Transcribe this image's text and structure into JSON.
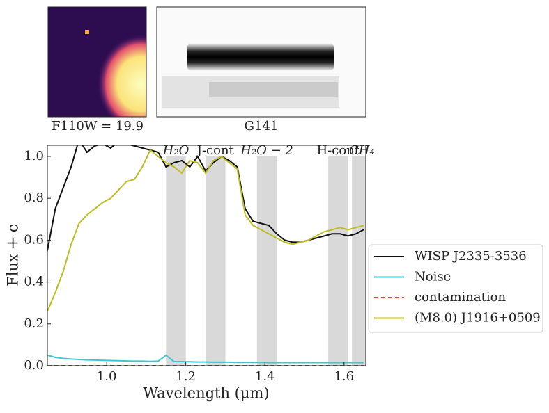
{
  "chart_data": {
    "type": "line",
    "image_labels": [
      "F110W = 19.9",
      "G141"
    ],
    "xlabel": "Wavelength (μm)",
    "ylabel": "Flux + c",
    "xlim": [
      0.85,
      1.655
    ],
    "ylim": [
      0,
      1.053
    ],
    "xticks": [
      {
        "value": 1.0,
        "label": "1.0"
      },
      {
        "value": 1.2,
        "label": "1.2"
      },
      {
        "value": 1.4,
        "label": "1.4"
      },
      {
        "value": 1.6,
        "label": "1.6"
      }
    ],
    "yticks": [
      {
        "value": 0,
        "label": "0.0"
      },
      0.2,
      0.4,
      0.6,
      0.8,
      {
        "value": 1,
        "label": "1.0"
      }
    ],
    "bands": [
      {
        "label": "H₂O",
        "range": [
          1.15,
          1.2
        ]
      },
      {
        "label": "J-cont",
        "range": [
          1.25,
          1.3
        ]
      },
      {
        "label": "H₂O − 2",
        "range": [
          1.38,
          1.43
        ]
      },
      {
        "label": "H-cont",
        "range": [
          1.56,
          1.61
        ]
      },
      {
        "label": "CH₄",
        "range": [
          1.62,
          1.67
        ]
      }
    ],
    "x": [
      0.85,
      0.87,
      0.89,
      0.91,
      0.93,
      0.95,
      0.97,
      0.99,
      1.01,
      1.03,
      1.05,
      1.07,
      1.09,
      1.11,
      1.13,
      1.15,
      1.17,
      1.19,
      1.21,
      1.23,
      1.25,
      1.27,
      1.29,
      1.31,
      1.33,
      1.35,
      1.37,
      1.39,
      1.41,
      1.43,
      1.45,
      1.47,
      1.49,
      1.51,
      1.53,
      1.55,
      1.57,
      1.59,
      1.61,
      1.63,
      1.65
    ],
    "series": [
      {
        "name": "WISP  J2335-3536",
        "color": "#111111",
        "values": [
          0.55,
          0.75,
          0.85,
          0.95,
          1.08,
          1.02,
          1.05,
          1.06,
          1.04,
          1.07,
          1.06,
          1.05,
          1.04,
          1.03,
          1.02,
          0.95,
          0.97,
          0.98,
          0.95,
          1.0,
          0.93,
          0.97,
          1.0,
          0.98,
          0.95,
          0.75,
          0.69,
          0.68,
          0.67,
          0.63,
          0.6,
          0.59,
          0.59,
          0.6,
          0.61,
          0.62,
          0.63,
          0.63,
          0.62,
          0.63,
          0.65
        ]
      },
      {
        "name": "Noise",
        "color": "#3ec6d0",
        "values": [
          0.05,
          0.04,
          0.035,
          0.032,
          0.03,
          0.028,
          0.027,
          0.026,
          0.025,
          0.024,
          0.023,
          0.022,
          0.022,
          0.021,
          0.022,
          0.05,
          0.02,
          0.02,
          0.019,
          0.018,
          0.018,
          0.017,
          0.017,
          0.017,
          0.016,
          0.016,
          0.016,
          0.016,
          0.015,
          0.015,
          0.015,
          0.015,
          0.015,
          0.015,
          0.015,
          0.015,
          0.015,
          0.015,
          0.015,
          0.015,
          0.015
        ]
      },
      {
        "name": "contamination",
        "color": "#e8432e",
        "dashed": true,
        "values": [
          0,
          0,
          0,
          0,
          0,
          0,
          0,
          0,
          0,
          0,
          0,
          0,
          0,
          0,
          0,
          0,
          0,
          0,
          0,
          0,
          0,
          0,
          0,
          0,
          0,
          0,
          0,
          0,
          0,
          0,
          0,
          0,
          0,
          0,
          0,
          0,
          0,
          0,
          0,
          0,
          0
        ]
      },
      {
        "name": "(M8.0) J1916+0509",
        "color": "#bcbd22",
        "values": [
          0.26,
          0.35,
          0.45,
          0.58,
          0.68,
          0.72,
          0.75,
          0.78,
          0.8,
          0.84,
          0.88,
          0.89,
          0.95,
          1.03,
          1.0,
          0.97,
          0.95,
          0.92,
          0.98,
          0.97,
          0.92,
          0.98,
          1.0,
          0.97,
          0.94,
          0.72,
          0.67,
          0.65,
          0.63,
          0.61,
          0.59,
          0.58,
          0.59,
          0.6,
          0.62,
          0.64,
          0.65,
          0.66,
          0.65,
          0.66,
          0.67
        ]
      }
    ]
  }
}
